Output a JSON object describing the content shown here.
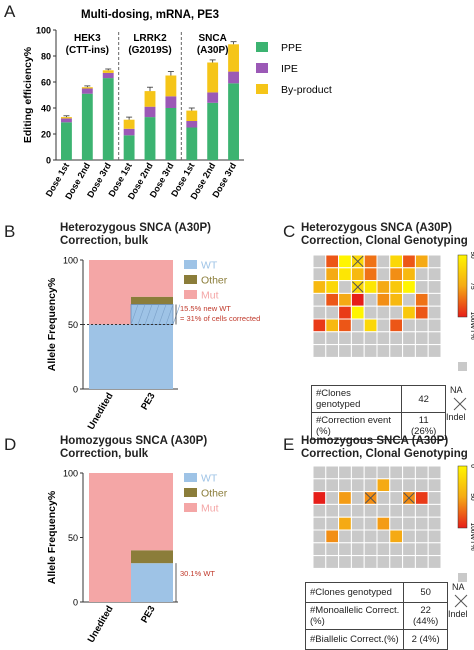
{
  "panels": {
    "a": "A",
    "b": "B",
    "c": "C",
    "d": "D",
    "e": "E"
  },
  "chart_data": [
    {
      "type": "bar",
      "title": "Multi-dosing, mRNA, PE3",
      "ylabel": "Editing efficiency%",
      "ylim": [
        0,
        100
      ],
      "yticks": [
        0,
        20,
        40,
        60,
        80,
        100
      ],
      "groups": [
        {
          "label1": "HEK3",
          "label2": "(CTT-ins)"
        },
        {
          "label1": "LRRK2",
          "label2": "(G2019S)"
        },
        {
          "label1": "SNCA",
          "label2": "(A30P)"
        }
      ],
      "categories": [
        "Dose 1st",
        "Dose 2nd",
        "Dose 3rd",
        "Dose 1st",
        "Dose 2nd",
        "Dose 3rd",
        "Dose 1st",
        "Dose 2nd",
        "Dose 3rd"
      ],
      "series": [
        {
          "name": "PPE",
          "color": "#3cb371",
          "values": [
            29,
            51,
            63,
            19,
            33,
            40,
            25,
            44,
            59
          ]
        },
        {
          "name": "IPE",
          "color": "#9b59b6",
          "values": [
            3,
            4,
            4,
            5,
            8,
            9,
            5,
            8,
            9
          ]
        },
        {
          "name": "By-product",
          "color": "#f5c518",
          "values": [
            1,
            1,
            2,
            7,
            12,
            16,
            8,
            23,
            21
          ]
        }
      ],
      "errors": [
        1,
        1,
        1,
        2,
        3,
        3,
        2,
        2,
        2
      ],
      "legend": "right"
    },
    {
      "type": "bar",
      "title": "Heterozygous SNCA (A30P)",
      "subtitle": "Correction, bulk",
      "ylabel": "Allele Frequency%",
      "ylim": [
        0,
        100
      ],
      "yticks": [
        0,
        50,
        100
      ],
      "categories": [
        "Unedited",
        "PE3"
      ],
      "series": [
        {
          "name": "WT",
          "color": "#9ec3e6",
          "values": [
            50,
            65.5
          ]
        },
        {
          "name": "Other",
          "color": "#8b7d3a",
          "values": [
            0,
            6
          ]
        },
        {
          "name": "Mut",
          "color": "#f4a6a6",
          "values": [
            50,
            28.5
          ]
        }
      ],
      "annotation": [
        "15.5% new WT",
        "= 31% of cells corrected"
      ],
      "reference": 50
    },
    {
      "type": "heatmap",
      "title": "Heterozygous SNCA (A30P)",
      "subtitle": "Correction, Clonal Genotyping",
      "colorbar": {
        "ticks": [
          "50",
          "75",
          "100"
        ],
        "label": "WT%"
      },
      "side_labels": [
        "NA",
        "Indel"
      ],
      "rows": 8,
      "cols": 10,
      "values": [
        [
          -1,
          90,
          50,
          -2,
          85,
          -1,
          60,
          90,
          75,
          -1
        ],
        [
          -1,
          75,
          55,
          70,
          85,
          -1,
          80,
          70,
          -1,
          -1
        ],
        [
          70,
          60,
          -1,
          -2,
          55,
          75,
          65,
          50,
          -1,
          -1
        ],
        [
          -1,
          90,
          75,
          100,
          -1,
          80,
          70,
          -1,
          85,
          -1
        ],
        [
          -1,
          -1,
          95,
          50,
          -1,
          -1,
          -1,
          65,
          90,
          -1
        ],
        [
          95,
          70,
          90,
          -1,
          60,
          -1,
          90,
          -1,
          -1,
          -1
        ],
        [
          -1,
          -1,
          -1,
          -1,
          -1,
          -1,
          -1,
          -1,
          -1,
          -1
        ],
        [
          -1,
          -1,
          -1,
          -1,
          -1,
          -1,
          -1,
          -1,
          -1,
          -1
        ]
      ],
      "table": [
        {
          "label": "#Clones genotyped",
          "value": "42"
        },
        {
          "label": "#Correction event (%)",
          "value": "11 (26%)"
        }
      ]
    },
    {
      "type": "bar",
      "title": "Homozygous SNCA (A30P)",
      "subtitle": "Correction, bulk",
      "ylabel": "Allele Frequency%",
      "ylim": [
        0,
        100
      ],
      "yticks": [
        0,
        50,
        100
      ],
      "categories": [
        "Unedited",
        "PE3"
      ],
      "series": [
        {
          "name": "WT",
          "color": "#9ec3e6",
          "values": [
            0,
            30.1
          ]
        },
        {
          "name": "Other",
          "color": "#8b7d3a",
          "values": [
            0,
            10
          ]
        },
        {
          "name": "Mut",
          "color": "#f4a6a6",
          "values": [
            100,
            59.9
          ]
        }
      ],
      "annotation": [
        "30.1% WT"
      ]
    },
    {
      "type": "heatmap",
      "title": "Homozygous SNCA (A30P)",
      "subtitle": "Correction, Clonal Genotyping",
      "colorbar": {
        "ticks": [
          "0",
          "50",
          "100"
        ],
        "label": "WT%"
      },
      "side_labels": [
        "NA",
        "Indel"
      ],
      "rows": 8,
      "cols": 10,
      "values": [
        [
          -1,
          -1,
          -1,
          -1,
          -1,
          -1,
          -1,
          -1,
          -1,
          -1
        ],
        [
          -1,
          -1,
          -1,
          -1,
          -1,
          50,
          -1,
          -1,
          -1,
          -1
        ],
        [
          100,
          -1,
          55,
          -1,
          -2,
          -1,
          -1,
          -2,
          90,
          -1
        ],
        [
          -1,
          -1,
          -1,
          -1,
          -1,
          -1,
          -1,
          -1,
          -1,
          -1
        ],
        [
          -1,
          -1,
          50,
          -1,
          -1,
          55,
          -1,
          -1,
          -1,
          -1
        ],
        [
          -1,
          60,
          -1,
          -1,
          -1,
          -1,
          50,
          -1,
          -1,
          -1
        ],
        [
          -1,
          -1,
          -1,
          -1,
          -1,
          -1,
          -1,
          -1,
          -1,
          -1
        ],
        [
          -1,
          -1,
          -1,
          -1,
          -1,
          -1,
          -1,
          -1,
          -1,
          -1
        ]
      ],
      "table": [
        {
          "label": "#Clones genotyped",
          "value": "50"
        },
        {
          "label": "#Monoallelic Correct.(%)",
          "value": "22 (44%)"
        },
        {
          "label": "#Biallelic Correct.(%)",
          "value": "2 (4%)"
        }
      ]
    }
  ]
}
